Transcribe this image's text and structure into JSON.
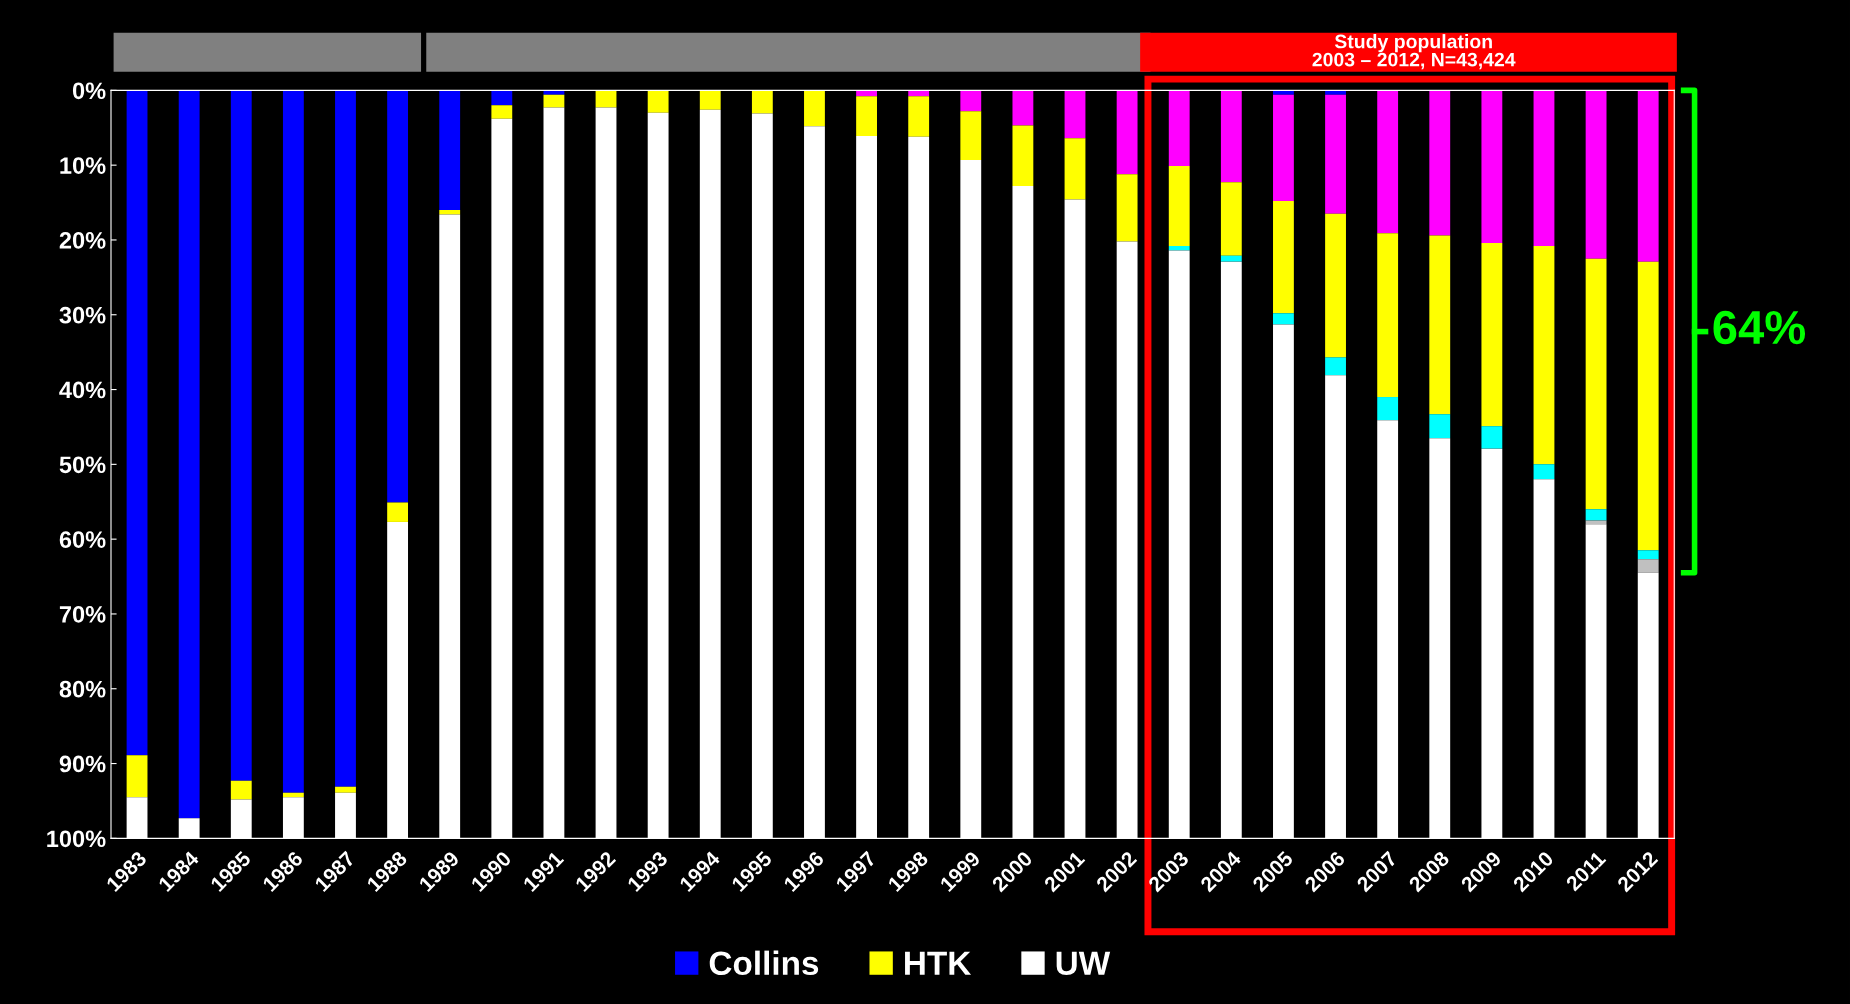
{
  "chart_data": {
    "type": "bar",
    "stacked": true,
    "categories": [
      "1983",
      "1984",
      "1985",
      "1986",
      "1987",
      "1988",
      "1989",
      "1990",
      "1991",
      "1992",
      "1993",
      "1994",
      "1995",
      "1996",
      "1997",
      "1998",
      "1999",
      "2000",
      "2001",
      "2002",
      "2003",
      "2004",
      "2005",
      "2006",
      "2007",
      "2008",
      "2009",
      "2010",
      "2011",
      "2012"
    ],
    "series": [
      {
        "name": "Collins",
        "color": "#0000ff",
        "values": [
          88.9,
          97.3,
          92.3,
          93.9,
          93.1,
          55.1,
          16.0,
          2.0,
          0.6,
          0,
          0,
          0,
          0,
          0,
          0,
          0,
          0,
          0,
          0,
          0,
          0,
          0,
          0.6,
          0.6,
          0,
          0,
          0,
          0,
          0,
          0
        ]
      },
      {
        "color": "#ff00ff",
        "values": [
          0,
          0,
          0,
          0,
          0,
          0,
          0,
          0,
          0,
          0,
          0,
          0,
          0,
          0,
          0.8,
          0.8,
          2.8,
          4.7,
          6.4,
          11.2,
          10.1,
          12.3,
          14.2,
          15.9,
          19.1,
          19.4,
          20.4,
          20.8,
          22.5,
          22.9
        ]
      },
      {
        "name": "HTK",
        "color": "#ffff00",
        "values": [
          5.6,
          0,
          2.5,
          0.6,
          0.8,
          2.6,
          0.6,
          1.8,
          1.7,
          2.3,
          3.0,
          2.6,
          3.1,
          4.8,
          5.3,
          5.4,
          6.5,
          8.1,
          8.2,
          9.0,
          10.7,
          9.8,
          15.0,
          19.2,
          21.9,
          23.9,
          24.5,
          29.2,
          33.5,
          38.6
        ]
      },
      {
        "color": "#00ffff",
        "values": [
          0,
          0,
          0,
          0,
          0,
          0,
          0,
          0,
          0,
          0,
          0,
          0,
          0,
          0,
          0,
          0,
          0,
          0,
          0,
          0,
          0.6,
          0.8,
          1.5,
          2.4,
          3.1,
          3.2,
          3.0,
          2.0,
          1.5,
          1.2
        ]
      },
      {
        "color": "#c0c0c0",
        "values": [
          0,
          0,
          0,
          0,
          0,
          0,
          0,
          0,
          0,
          0,
          0,
          0,
          0,
          0,
          0,
          0,
          0,
          0,
          0,
          0,
          0,
          0,
          0,
          0,
          0,
          0,
          0,
          0,
          0.5,
          1.8
        ]
      },
      {
        "name": "UW",
        "color": "#ffffff",
        "values": [
          5.5,
          2.7,
          5.2,
          5.5,
          6.1,
          42.3,
          83.4,
          96.2,
          97.7,
          97.7,
          97.0,
          97.4,
          96.9,
          95.2,
          93.9,
          93.8,
          90.7,
          87.2,
          85.4,
          79.8,
          78.6,
          77.1,
          68.7,
          61.9,
          55.9,
          53.5,
          52.1,
          48.0,
          42.0,
          35.5
        ]
      }
    ],
    "ylim": [
      100,
      0
    ],
    "yticks": [
      {
        "value": 0,
        "label": "0%"
      },
      {
        "value": 10,
        "label": "10%"
      },
      {
        "value": 20,
        "label": "20%"
      },
      {
        "value": 30,
        "label": "30%"
      },
      {
        "value": 40,
        "label": "40%"
      },
      {
        "value": 50,
        "label": "50%"
      },
      {
        "value": 60,
        "label": "60%"
      },
      {
        "value": 70,
        "label": "70%"
      },
      {
        "value": 80,
        "label": "80%"
      },
      {
        "value": 90,
        "label": "90%"
      },
      {
        "value": 100,
        "label": "100%"
      }
    ],
    "annotations": [
      "Study population\n2003 – 2012, N=43,424",
      "64%"
    ],
    "grid": false,
    "legend": "bottom"
  }
}
